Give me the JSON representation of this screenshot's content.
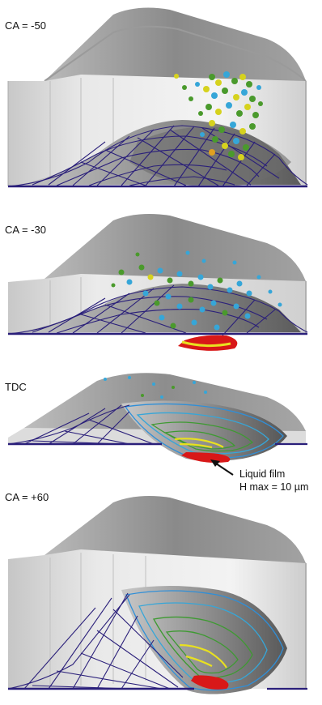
{
  "panels": [
    {
      "label": "CA = -50"
    },
    {
      "label": "CA = -30"
    },
    {
      "label": "TDC"
    },
    {
      "label": "CA = +60"
    }
  ],
  "annotation": {
    "line1": "Liquid film",
    "line2": "H max = 10 µm"
  },
  "colors": {
    "mesh": "#2a1f7a",
    "chamber_top": "#8e8e8e",
    "chamber_wall": "#d4d4d4",
    "film_red": "#d81818",
    "film_yellow": "#e8e020",
    "film_green": "#3e9a32",
    "film_blue": "#2f8fd8",
    "droplet_blue": "#36a6d8",
    "droplet_green": "#4a9a2c",
    "droplet_yellow": "#d6d21e"
  }
}
